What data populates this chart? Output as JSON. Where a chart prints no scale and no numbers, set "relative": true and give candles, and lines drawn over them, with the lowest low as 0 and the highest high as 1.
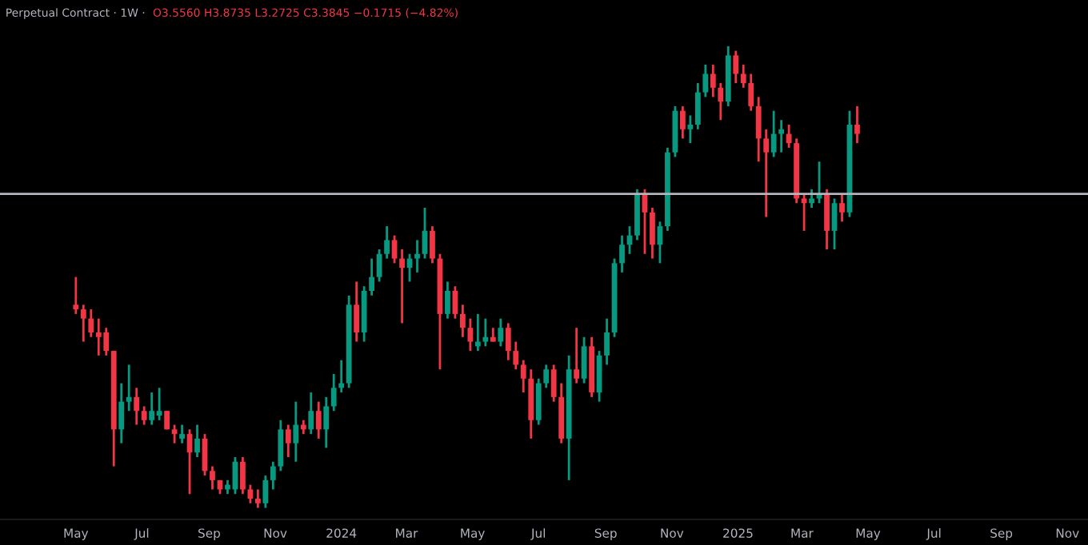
{
  "chart_data": {
    "type": "candlestick",
    "title": "Perpetual Contract · 1W ·",
    "annotations": [
      "O3.5560 H3.8735 L3.2725 C3.3845 −0.1715 (−4.82%)"
    ],
    "relative": true,
    "tick_labels": "x",
    "grid": false,
    "colors": [
      "#f23645",
      "#f23645",
      "#f23645",
      "#f23645",
      "#f23645",
      "#f23645",
      "#089981",
      "#089981",
      "#f23645",
      "#f23645",
      "#089981",
      "#089981",
      "#f23645",
      "#f23645",
      "#089981",
      "#f23645",
      "#089981",
      "#f23645",
      "#f23645",
      "#f23645",
      "#089981",
      "#089981",
      "#f23645",
      "#f23645",
      "#f23645",
      "#089981",
      "#089981",
      "#089981",
      "#f23645",
      "#089981",
      "#f23645",
      "#089981",
      "#f23645",
      "#089981",
      "#089981",
      "#089981",
      "#089981",
      "#f23645",
      "#089981",
      "#089981",
      "#089981",
      "#089981",
      "#f23645",
      "#f23645",
      "#089981",
      "#089981",
      "#089981",
      "#f23645",
      "#f23645",
      "#089981",
      "#f23645",
      "#f23645",
      "#f23645",
      "#089981",
      "#089981",
      "#f23645",
      "#089981",
      "#f23645",
      "#f23645",
      "#f23645",
      "#f23645",
      "#089981",
      "#089981",
      "#f23645",
      "#f23645",
      "#089981",
      "#f23645",
      "#089981",
      "#f23645",
      "#089981",
      "#089981",
      "#089981",
      "#089981",
      "#089981",
      "#089981",
      "#f23645",
      "#f23645",
      "#089981",
      "#089981",
      "#089981",
      "#f23645",
      "#089981",
      "#089981",
      "#089981",
      "#f23645",
      "#f23645",
      "#089981",
      "#f23645",
      "#f23645",
      "#f23645",
      "#f23645",
      "#f23645",
      "#089981",
      "#089981",
      "#f23645",
      "#f23645",
      "#f23645",
      "#089981",
      "#089981",
      "#f23645",
      "#089981",
      "#f23645",
      "#089981",
      "#f23645"
    ],
    "xlim": [
      "2023-02-20",
      "2025-11-20"
    ],
    "xticks": [
      {
        "value": "2023-05-01",
        "label": "May"
      },
      {
        "value": "2023-07-01",
        "label": "Jul"
      },
      {
        "value": "2023-09-01",
        "label": "Sep"
      },
      {
        "value": "2023-11-01",
        "label": "Nov"
      },
      {
        "value": "2024-01-01",
        "label": "2024"
      },
      {
        "value": "2024-03-01",
        "label": "Mar"
      },
      {
        "value": "2024-05-01",
        "label": "May"
      },
      {
        "value": "2024-07-01",
        "label": "Jul"
      },
      {
        "value": "2024-09-01",
        "label": "Sep"
      },
      {
        "value": "2024-11-01",
        "label": "Nov"
      },
      {
        "value": "2025-01-01",
        "label": "2025"
      },
      {
        "value": "2025-03-01",
        "label": "Mar"
      },
      {
        "value": "2025-05-01",
        "label": "May"
      },
      {
        "value": "2025-07-01",
        "label": "Jul"
      },
      {
        "value": "2025-09-01",
        "label": "Sep"
      },
      {
        "value": "2025-11-01",
        "label": "Nov"
      }
    ],
    "ref_lines": [
      {
        "axis": "y",
        "value": 0.68,
        "color": "#b2b5be"
      }
    ],
    "x": [
      "2023-05-01",
      "2023-05-08",
      "2023-05-15",
      "2023-05-22",
      "2023-05-29",
      "2023-06-05",
      "2023-06-12",
      "2023-06-19",
      "2023-06-26",
      "2023-07-03",
      "2023-07-10",
      "2023-07-17",
      "2023-07-24",
      "2023-07-31",
      "2023-08-07",
      "2023-08-14",
      "2023-08-21",
      "2023-08-28",
      "2023-09-04",
      "2023-09-11",
      "2023-09-18",
      "2023-09-25",
      "2023-10-02",
      "2023-10-09",
      "2023-10-16",
      "2023-10-23",
      "2023-10-30",
      "2023-11-06",
      "2023-11-13",
      "2023-11-20",
      "2023-11-27",
      "2023-12-04",
      "2023-12-11",
      "2023-12-18",
      "2023-12-25",
      "2024-01-01",
      "2024-01-08",
      "2024-01-15",
      "2024-01-22",
      "2024-01-29",
      "2024-02-05",
      "2024-02-12",
      "2024-02-19",
      "2024-02-26",
      "2024-03-04",
      "2024-03-11",
      "2024-03-18",
      "2024-03-25",
      "2024-04-01",
      "2024-04-08",
      "2024-04-15",
      "2024-04-22",
      "2024-04-29",
      "2024-05-06",
      "2024-05-13",
      "2024-05-20",
      "2024-05-27",
      "2024-06-03",
      "2024-06-10",
      "2024-06-17",
      "2024-06-24",
      "2024-07-01",
      "2024-07-08",
      "2024-07-15",
      "2024-07-22",
      "2024-07-29",
      "2024-08-05",
      "2024-08-12",
      "2024-08-19",
      "2024-08-26",
      "2024-09-02",
      "2024-09-09",
      "2024-09-16",
      "2024-09-23",
      "2024-09-30",
      "2024-10-07",
      "2024-10-14",
      "2024-10-21",
      "2024-10-28",
      "2024-11-04",
      "2024-11-11",
      "2024-11-18",
      "2024-11-25",
      "2024-12-02",
      "2024-12-09",
      "2024-12-16",
      "2024-12-23",
      "2024-12-30",
      "2025-01-06",
      "2025-01-13",
      "2025-01-20",
      "2025-01-27",
      "2025-02-03",
      "2025-02-10",
      "2025-02-17",
      "2025-02-24",
      "2025-03-03",
      "2025-03-10",
      "2025-03-17",
      "2025-03-24",
      "2025-03-31",
      "2025-04-07",
      "2025-04-14",
      "2025-04-21"
    ],
    "ohlc": [
      [
        0.44,
        0.5,
        0.42,
        0.43
      ],
      [
        0.43,
        0.44,
        0.36,
        0.41
      ],
      [
        0.41,
        0.43,
        0.37,
        0.38
      ],
      [
        0.38,
        0.41,
        0.33,
        0.37
      ],
      [
        0.38,
        0.39,
        0.33,
        0.34
      ],
      [
        0.34,
        0.34,
        0.09,
        0.17
      ],
      [
        0.17,
        0.27,
        0.14,
        0.23
      ],
      [
        0.23,
        0.31,
        0.21,
        0.24
      ],
      [
        0.24,
        0.26,
        0.18,
        0.21
      ],
      [
        0.21,
        0.22,
        0.18,
        0.19
      ],
      [
        0.19,
        0.25,
        0.18,
        0.21
      ],
      [
        0.2,
        0.26,
        0.19,
        0.21
      ],
      [
        0.21,
        0.21,
        0.17,
        0.17
      ],
      [
        0.17,
        0.18,
        0.14,
        0.16
      ],
      [
        0.15,
        0.18,
        0.14,
        0.16
      ],
      [
        0.16,
        0.17,
        0.03,
        0.12
      ],
      [
        0.12,
        0.18,
        0.11,
        0.15
      ],
      [
        0.15,
        0.16,
        0.07,
        0.08
      ],
      [
        0.08,
        0.09,
        0.04,
        0.06
      ],
      [
        0.06,
        0.06,
        0.03,
        0.04
      ],
      [
        0.04,
        0.06,
        0.03,
        0.05
      ],
      [
        0.04,
        0.11,
        0.03,
        0.1
      ],
      [
        0.1,
        0.11,
        0.03,
        0.04
      ],
      [
        0.04,
        0.05,
        0.01,
        0.02
      ],
      [
        0.02,
        0.04,
        0.0,
        0.01
      ],
      [
        0.01,
        0.07,
        0.0,
        0.06
      ],
      [
        0.06,
        0.1,
        0.04,
        0.09
      ],
      [
        0.09,
        0.19,
        0.08,
        0.17
      ],
      [
        0.17,
        0.18,
        0.11,
        0.14
      ],
      [
        0.14,
        0.23,
        0.1,
        0.18
      ],
      [
        0.18,
        0.19,
        0.16,
        0.17
      ],
      [
        0.17,
        0.25,
        0.16,
        0.21
      ],
      [
        0.21,
        0.23,
        0.15,
        0.17
      ],
      [
        0.17,
        0.24,
        0.13,
        0.22
      ],
      [
        0.22,
        0.29,
        0.21,
        0.26
      ],
      [
        0.26,
        0.32,
        0.25,
        0.27
      ],
      [
        0.27,
        0.46,
        0.26,
        0.44
      ],
      [
        0.44,
        0.49,
        0.36,
        0.38
      ],
      [
        0.38,
        0.48,
        0.36,
        0.47
      ],
      [
        0.47,
        0.54,
        0.46,
        0.5
      ],
      [
        0.5,
        0.56,
        0.49,
        0.55
      ],
      [
        0.55,
        0.61,
        0.54,
        0.58
      ],
      [
        0.58,
        0.59,
        0.53,
        0.54
      ],
      [
        0.54,
        0.56,
        0.4,
        0.52
      ],
      [
        0.52,
        0.55,
        0.49,
        0.54
      ],
      [
        0.54,
        0.58,
        0.51,
        0.55
      ],
      [
        0.55,
        0.65,
        0.54,
        0.6
      ],
      [
        0.6,
        0.61,
        0.53,
        0.54
      ],
      [
        0.54,
        0.55,
        0.3,
        0.42
      ],
      [
        0.42,
        0.49,
        0.41,
        0.47
      ],
      [
        0.47,
        0.48,
        0.41,
        0.42
      ],
      [
        0.42,
        0.44,
        0.37,
        0.39
      ],
      [
        0.39,
        0.41,
        0.34,
        0.36
      ],
      [
        0.35,
        0.42,
        0.34,
        0.36
      ],
      [
        0.36,
        0.41,
        0.35,
        0.37
      ],
      [
        0.37,
        0.39,
        0.36,
        0.36
      ],
      [
        0.36,
        0.41,
        0.35,
        0.39
      ],
      [
        0.39,
        0.4,
        0.32,
        0.34
      ],
      [
        0.34,
        0.36,
        0.3,
        0.31
      ],
      [
        0.31,
        0.32,
        0.25,
        0.28
      ],
      [
        0.28,
        0.3,
        0.15,
        0.19
      ],
      [
        0.19,
        0.28,
        0.18,
        0.27
      ],
      [
        0.27,
        0.31,
        0.26,
        0.3
      ],
      [
        0.3,
        0.31,
        0.23,
        0.24
      ],
      [
        0.24,
        0.27,
        0.14,
        0.15
      ],
      [
        0.15,
        0.33,
        0.06,
        0.3
      ],
      [
        0.3,
        0.39,
        0.27,
        0.28
      ],
      [
        0.28,
        0.37,
        0.27,
        0.35
      ],
      [
        0.35,
        0.37,
        0.24,
        0.25
      ],
      [
        0.25,
        0.34,
        0.23,
        0.33
      ],
      [
        0.33,
        0.41,
        0.31,
        0.38
      ],
      [
        0.38,
        0.54,
        0.37,
        0.53
      ],
      [
        0.53,
        0.59,
        0.51,
        0.57
      ],
      [
        0.57,
        0.61,
        0.55,
        0.59
      ],
      [
        0.59,
        0.69,
        0.58,
        0.68
      ],
      [
        0.68,
        0.69,
        0.55,
        0.64
      ],
      [
        0.64,
        0.65,
        0.54,
        0.57
      ],
      [
        0.57,
        0.62,
        0.53,
        0.61
      ],
      [
        0.61,
        0.78,
        0.6,
        0.77
      ],
      [
        0.77,
        0.87,
        0.76,
        0.86
      ],
      [
        0.86,
        0.87,
        0.8,
        0.82
      ],
      [
        0.82,
        0.85,
        0.79,
        0.83
      ],
      [
        0.83,
        0.92,
        0.82,
        0.9
      ],
      [
        0.9,
        0.96,
        0.89,
        0.94
      ],
      [
        0.94,
        0.96,
        0.89,
        0.91
      ],
      [
        0.91,
        0.92,
        0.84,
        0.88
      ],
      [
        0.88,
        1.0,
        0.87,
        0.98
      ],
      [
        0.98,
        0.99,
        0.92,
        0.94
      ],
      [
        0.94,
        0.96,
        0.91,
        0.92
      ],
      [
        0.92,
        0.94,
        0.86,
        0.87
      ],
      [
        0.87,
        0.89,
        0.75,
        0.8
      ],
      [
        0.8,
        0.82,
        0.63,
        0.77
      ],
      [
        0.77,
        0.86,
        0.76,
        0.81
      ],
      [
        0.81,
        0.84,
        0.77,
        0.82
      ],
      [
        0.81,
        0.83,
        0.78,
        0.79
      ],
      [
        0.79,
        0.8,
        0.66,
        0.67
      ],
      [
        0.67,
        0.68,
        0.6,
        0.66
      ],
      [
        0.66,
        0.69,
        0.65,
        0.67
      ],
      [
        0.67,
        0.75,
        0.66,
        0.68
      ],
      [
        0.68,
        0.69,
        0.56,
        0.6
      ],
      [
        0.6,
        0.67,
        0.56,
        0.66
      ],
      [
        0.66,
        0.68,
        0.62,
        0.64
      ],
      [
        0.64,
        0.86,
        0.63,
        0.83
      ],
      [
        0.83,
        0.87,
        0.79,
        0.81
      ]
    ]
  }
}
